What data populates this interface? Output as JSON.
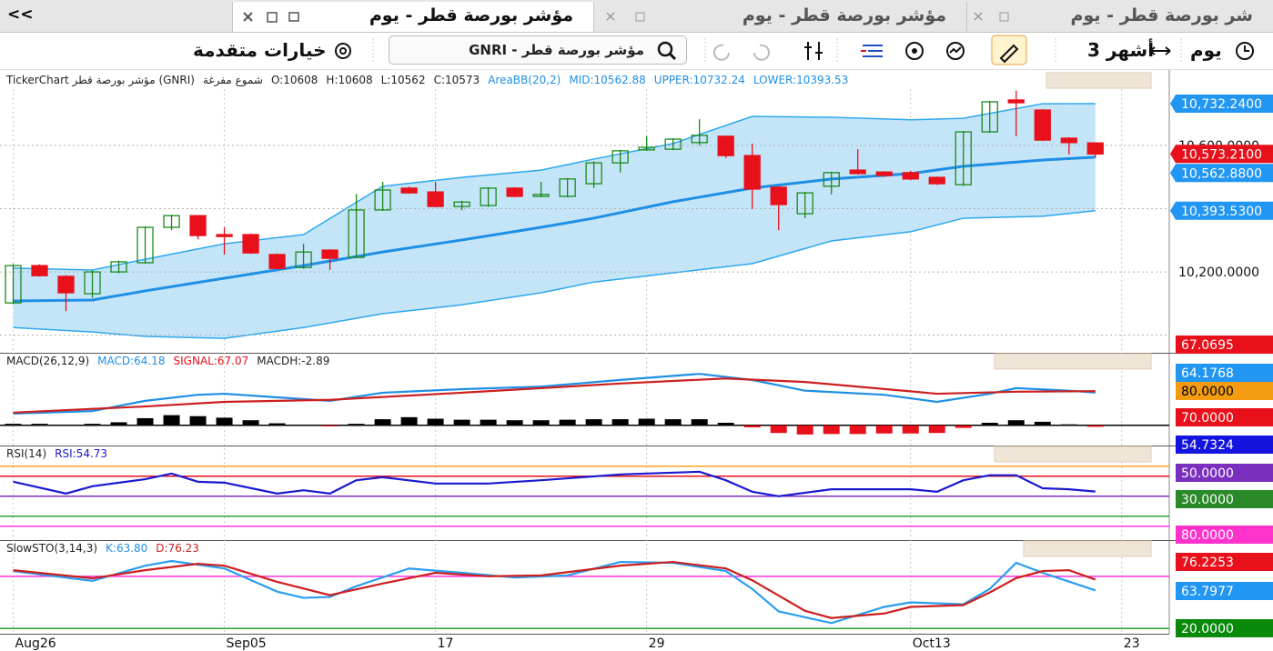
{
  "tabs": {
    "back": "<<",
    "items": [
      {
        "title": "مؤشر بورصة قطر - يوم",
        "active": true
      },
      {
        "title": "مؤشر بورصة قطر - يوم",
        "active": false
      },
      {
        "title": "شر بورصة قطر - يوم",
        "active": false
      }
    ]
  },
  "toolbar": {
    "period": "يوم",
    "range": "3 أشهر",
    "search": "GNRI - مؤشر بورصة قطر",
    "advanced": "خيارات متقدمة"
  },
  "chart_data": [
    {
      "type": "candlestick",
      "title": "TickerChart مؤشر بورصة قطر (GNRI)",
      "subtitle": "شموع مفرغة",
      "ohlc_labels": [
        "O:10608",
        "H:10608",
        "L:10562",
        "C:10573"
      ],
      "indicator_labels": [
        "AreaBB(20,2)",
        "MID:10562.88",
        "UPPER:10732.24",
        "LOWER:10393.53"
      ],
      "indicator_color": "#1e8fe6",
      "open": [
        10102,
        10220,
        10186,
        10131,
        10200,
        10229,
        10341,
        10378,
        10318,
        10318,
        10255,
        10214,
        10269,
        10246,
        10396,
        10465,
        10453,
        10407,
        10410,
        10465,
        10439,
        10439,
        10479,
        10545,
        10586,
        10588,
        10609,
        10629,
        10568,
        10468,
        10384,
        10471,
        10522,
        10516,
        10514,
        10499,
        10476,
        10643,
        10744,
        10712,
        10623,
        10608
      ],
      "high": [
        10225,
        10224,
        10190,
        10205,
        10236,
        10344,
        10381,
        10380,
        10341,
        10322,
        10258,
        10289,
        10272,
        10447,
        10485,
        10470,
        10485,
        10425,
        10468,
        10468,
        10485,
        10497,
        10550,
        10586,
        10629,
        10623,
        10683,
        10632,
        10606,
        10471,
        10453,
        10517,
        10588,
        10519,
        10520,
        10502,
        10646,
        10741,
        10773,
        10715,
        10626,
        10608
      ],
      "low": [
        10098,
        10185,
        10076,
        10118,
        10196,
        10226,
        10332,
        10303,
        10255,
        10257,
        10208,
        10210,
        10206,
        10243,
        10393,
        10447,
        10404,
        10395,
        10406,
        10436,
        10436,
        10436,
        10465,
        10514,
        10583,
        10585,
        10600,
        10560,
        10399,
        10332,
        10370,
        10445,
        10508,
        10500,
        10490,
        10475,
        10472,
        10640,
        10629,
        10614,
        10571,
        10562
      ],
      "close": [
        10220,
        10188,
        10134,
        10200,
        10232,
        10341,
        10378,
        10315,
        10312,
        10260,
        10211,
        10263,
        10243,
        10396,
        10459,
        10450,
        10407,
        10421,
        10465,
        10439,
        10445,
        10494,
        10545,
        10583,
        10594,
        10620,
        10632,
        10568,
        10462,
        10413,
        10450,
        10514,
        10511,
        10505,
        10494,
        10479,
        10643,
        10738,
        10735,
        10617,
        10609,
        10573
      ],
      "up_color": "#1a8a1a",
      "down_color": "#e8101a",
      "band": {
        "fill": "#c4e5f8",
        "line_color": "#2ea8ee",
        "x": [
          0,
          3,
          5,
          8,
          11,
          14,
          17,
          20,
          22,
          25,
          28,
          31,
          34,
          36,
          39,
          41
        ],
        "upper": [
          10212,
          10206,
          10240,
          10289,
          10318,
          10471,
          10499,
          10522,
          10557,
          10606,
          10692,
          10689,
          10681,
          10686,
          10732,
          10732.24
        ],
        "lower": [
          10024,
          10010,
          9996,
          9990,
          10024,
          10068,
          10096,
          10134,
          10168,
          10197,
          10226,
          10298,
          10327,
          10370,
          10376,
          10393.53
        ]
      },
      "series": [
        {
          "color": "#1e8fe6",
          "x": [
            0,
            3,
            5,
            8,
            11,
            14,
            17,
            20,
            22,
            25,
            28,
            31,
            34,
            36,
            39,
            41
          ],
          "values": [
            10108,
            10111,
            10140,
            10180,
            10220,
            10263,
            10301,
            10341,
            10370,
            10422,
            10465,
            10494,
            10511,
            10534,
            10554,
            10562.88
          ]
        }
      ],
      "xlim": [
        -0.5,
        43.8
      ],
      "xticks": [
        {
          "value": 0,
          "label": "Aug26"
        },
        {
          "value": 8,
          "label": "Sep05"
        },
        {
          "value": 16,
          "label": "17"
        },
        {
          "value": 24,
          "label": "29"
        },
        {
          "value": 34,
          "label": "Oct13"
        },
        {
          "value": 42,
          "label": "23"
        }
      ],
      "ylim": [
        9950,
        10830
      ],
      "yticks": [
        {
          "value": 10200,
          "label": "10,200.0000"
        },
        {
          "value": 10600,
          "label": "10,600.0000"
        }
      ],
      "grid_values": [
        10000,
        10400
      ],
      "markers": [
        {
          "value": 10732.24,
          "label": "10,732.2400",
          "color": "#2196f3"
        },
        {
          "value": 10573.21,
          "label": "10,573.2100",
          "color": "#e8101a"
        },
        {
          "value": 10562.88,
          "label": "10,562.8800",
          "color": "#2196f3"
        },
        {
          "value": 10393.53,
          "label": "10,393.5300",
          "color": "#2196f3"
        }
      ]
    },
    {
      "type": "line",
      "title": "MACD(26,12,9)",
      "labels": [
        {
          "text": "MACD:64.18",
          "color": "#1e8fe6"
        },
        {
          "text": "SIGNAL:67.07",
          "color": "#e8101a"
        },
        {
          "text": "MACDH:-2.89",
          "color": "#222222"
        }
      ],
      "series": [
        {
          "color": "#1e8fe6",
          "x": [
            0,
            3,
            5,
            7,
            8,
            10,
            12,
            14,
            17,
            20,
            23,
            26,
            28,
            30,
            33,
            35,
            37,
            38,
            40,
            41
          ],
          "values": [
            23,
            28,
            48,
            60,
            62,
            55,
            48,
            64,
            71,
            76,
            89,
            101,
            89,
            68,
            60,
            46,
            62,
            73,
            68,
            64.18
          ]
        },
        {
          "color": "#cc1f1f",
          "x": [
            0,
            5,
            8,
            12,
            17,
            23,
            27,
            30,
            35,
            38,
            41
          ],
          "values": [
            25,
            37,
            46,
            50,
            64,
            82,
            92,
            85,
            62,
            66,
            67.07
          ]
        }
      ],
      "histogram": {
        "pos_color": "#000000",
        "neg_color": "#e8101a",
        "values": [
          3,
          3,
          1,
          3,
          6,
          14,
          20,
          18,
          15,
          10,
          4,
          1,
          -2,
          3,
          12,
          16,
          13,
          11,
          11,
          10,
          10,
          11,
          12,
          12,
          13,
          12,
          12,
          5,
          -4,
          -15,
          -18,
          -17,
          -17,
          -16,
          -16,
          -15,
          -5,
          5,
          10,
          7,
          2,
          -2.89
        ]
      },
      "levels": [
        {
          "value": 0,
          "color": "#000000"
        }
      ],
      "ylim": [
        -36,
        112
      ],
      "right_labels": [
        {
          "text": "67.0695",
          "color": "#e8101a"
        },
        {
          "text": "64.1768",
          "color": "#2196f3"
        },
        {
          "text": "80.0000",
          "color": "#f39c12"
        },
        {
          "text": "70.0000",
          "color": "#e8101a"
        }
      ]
    },
    {
      "type": "line",
      "title": "RSI(14)",
      "labels": [
        {
          "text": "RSI:54.73",
          "color": "#1a1ad0"
        }
      ],
      "series": [
        {
          "color": "#1a1ad0",
          "x": [
            0,
            2,
            3,
            5,
            6,
            7,
            8,
            10,
            11,
            12,
            13,
            14,
            16,
            18,
            20,
            23,
            26,
            27,
            28,
            29,
            31,
            34,
            35,
            36,
            37,
            38,
            39,
            40,
            41
          ],
          "values": [
            64.5,
            52.7,
            60,
            67,
            72.7,
            64.5,
            63.6,
            52.7,
            56,
            52.7,
            66,
            69,
            62.7,
            62.7,
            66,
            71.8,
            74.5,
            66,
            54.5,
            50,
            57,
            57,
            54.5,
            66,
            71,
            71,
            58,
            57,
            54.73
          ]
        }
      ],
      "levels": [
        {
          "value": 80,
          "color": "#f5a623"
        },
        {
          "value": 70,
          "color": "#e8101a"
        },
        {
          "value": 50,
          "color": "#7b2fbe"
        },
        {
          "value": 30,
          "color": "#2ea02e"
        },
        {
          "value": 20,
          "color": "#ff33dd"
        }
      ],
      "ylim": [
        8,
        88
      ],
      "right_labels": [
        {
          "text": "54.7324",
          "color": "#1414e0"
        },
        {
          "text": "50.0000",
          "color": "#7b2fbe"
        },
        {
          "text": "30.0000",
          "color": "#2a8a2a"
        },
        {
          "text": "80.0000",
          "color": "#ff33cc"
        }
      ]
    },
    {
      "type": "line",
      "title": "SlowSTO(3,14,3)",
      "labels": [
        {
          "text": "K:63.80",
          "color": "#1e8fe6"
        },
        {
          "text": "D:76.23",
          "color": "#cc1f1f"
        }
      ],
      "series": [
        {
          "color": "#2a9df0",
          "x": [
            0,
            3,
            5,
            6,
            8,
            10,
            11,
            12,
            13,
            15,
            17,
            19,
            21,
            23,
            25,
            27,
            28,
            29,
            31,
            33,
            34,
            36,
            37,
            38,
            39,
            41
          ],
          "values": [
            86,
            74.7,
            92.2,
            97.6,
            89,
            62.4,
            55.2,
            56.2,
            68.6,
            89,
            84,
            78.6,
            81,
            96.5,
            95.5,
            86,
            65.5,
            39.6,
            26.2,
            44.8,
            50,
            47.8,
            65.5,
            95.5,
            84,
            63.8
          ]
        },
        {
          "color": "#cc1f1f",
          "x": [
            0,
            3,
            5,
            7,
            8,
            10,
            12,
            14,
            16,
            18,
            20,
            23,
            25,
            27,
            28,
            30,
            31,
            33,
            34,
            36,
            37,
            38,
            39,
            40,
            41
          ],
          "values": [
            87,
            77.7,
            87,
            94.3,
            92.2,
            73.6,
            58.3,
            71.7,
            84,
            80,
            81,
            92.2,
            96.5,
            89,
            75.4,
            40.3,
            32,
            37.2,
            44.8,
            46.9,
            61.4,
            77.9,
            86,
            87,
            76.23
          ]
        }
      ],
      "levels": [
        {
          "value": 80,
          "color": "#ff33dd"
        },
        {
          "value": 20,
          "color": "#2ea02e"
        }
      ],
      "ylim": [
        15,
        107
      ],
      "right_labels": [
        {
          "text": "76.2253",
          "color": "#e8101a"
        },
        {
          "text": "63.7977",
          "color": "#2196f3"
        },
        {
          "text": "20.0000",
          "color": "#0a8a0a"
        }
      ]
    }
  ]
}
